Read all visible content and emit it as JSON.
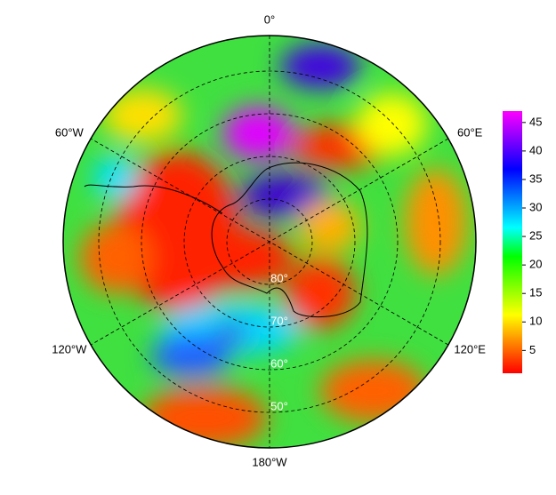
{
  "map": {
    "meridian_labels": [
      "0°",
      "60°E",
      "120°E",
      "180°W",
      "120°W",
      "60°W"
    ],
    "latitude_labels": [
      "80°",
      "70°",
      "60°",
      "50°"
    ],
    "colorbar": {
      "lim": [
        1,
        47
      ],
      "ticks": [
        5,
        10,
        15,
        20,
        25,
        30,
        35,
        40,
        45
      ],
      "colors": [
        "#ff0000",
        "#ff8000",
        "#ffff00",
        "#80ff00",
        "#00ff00",
        "#00ffff",
        "#0080ff",
        "#0000ff",
        "#8000ff",
        "#ff00ff"
      ]
    }
  }
}
